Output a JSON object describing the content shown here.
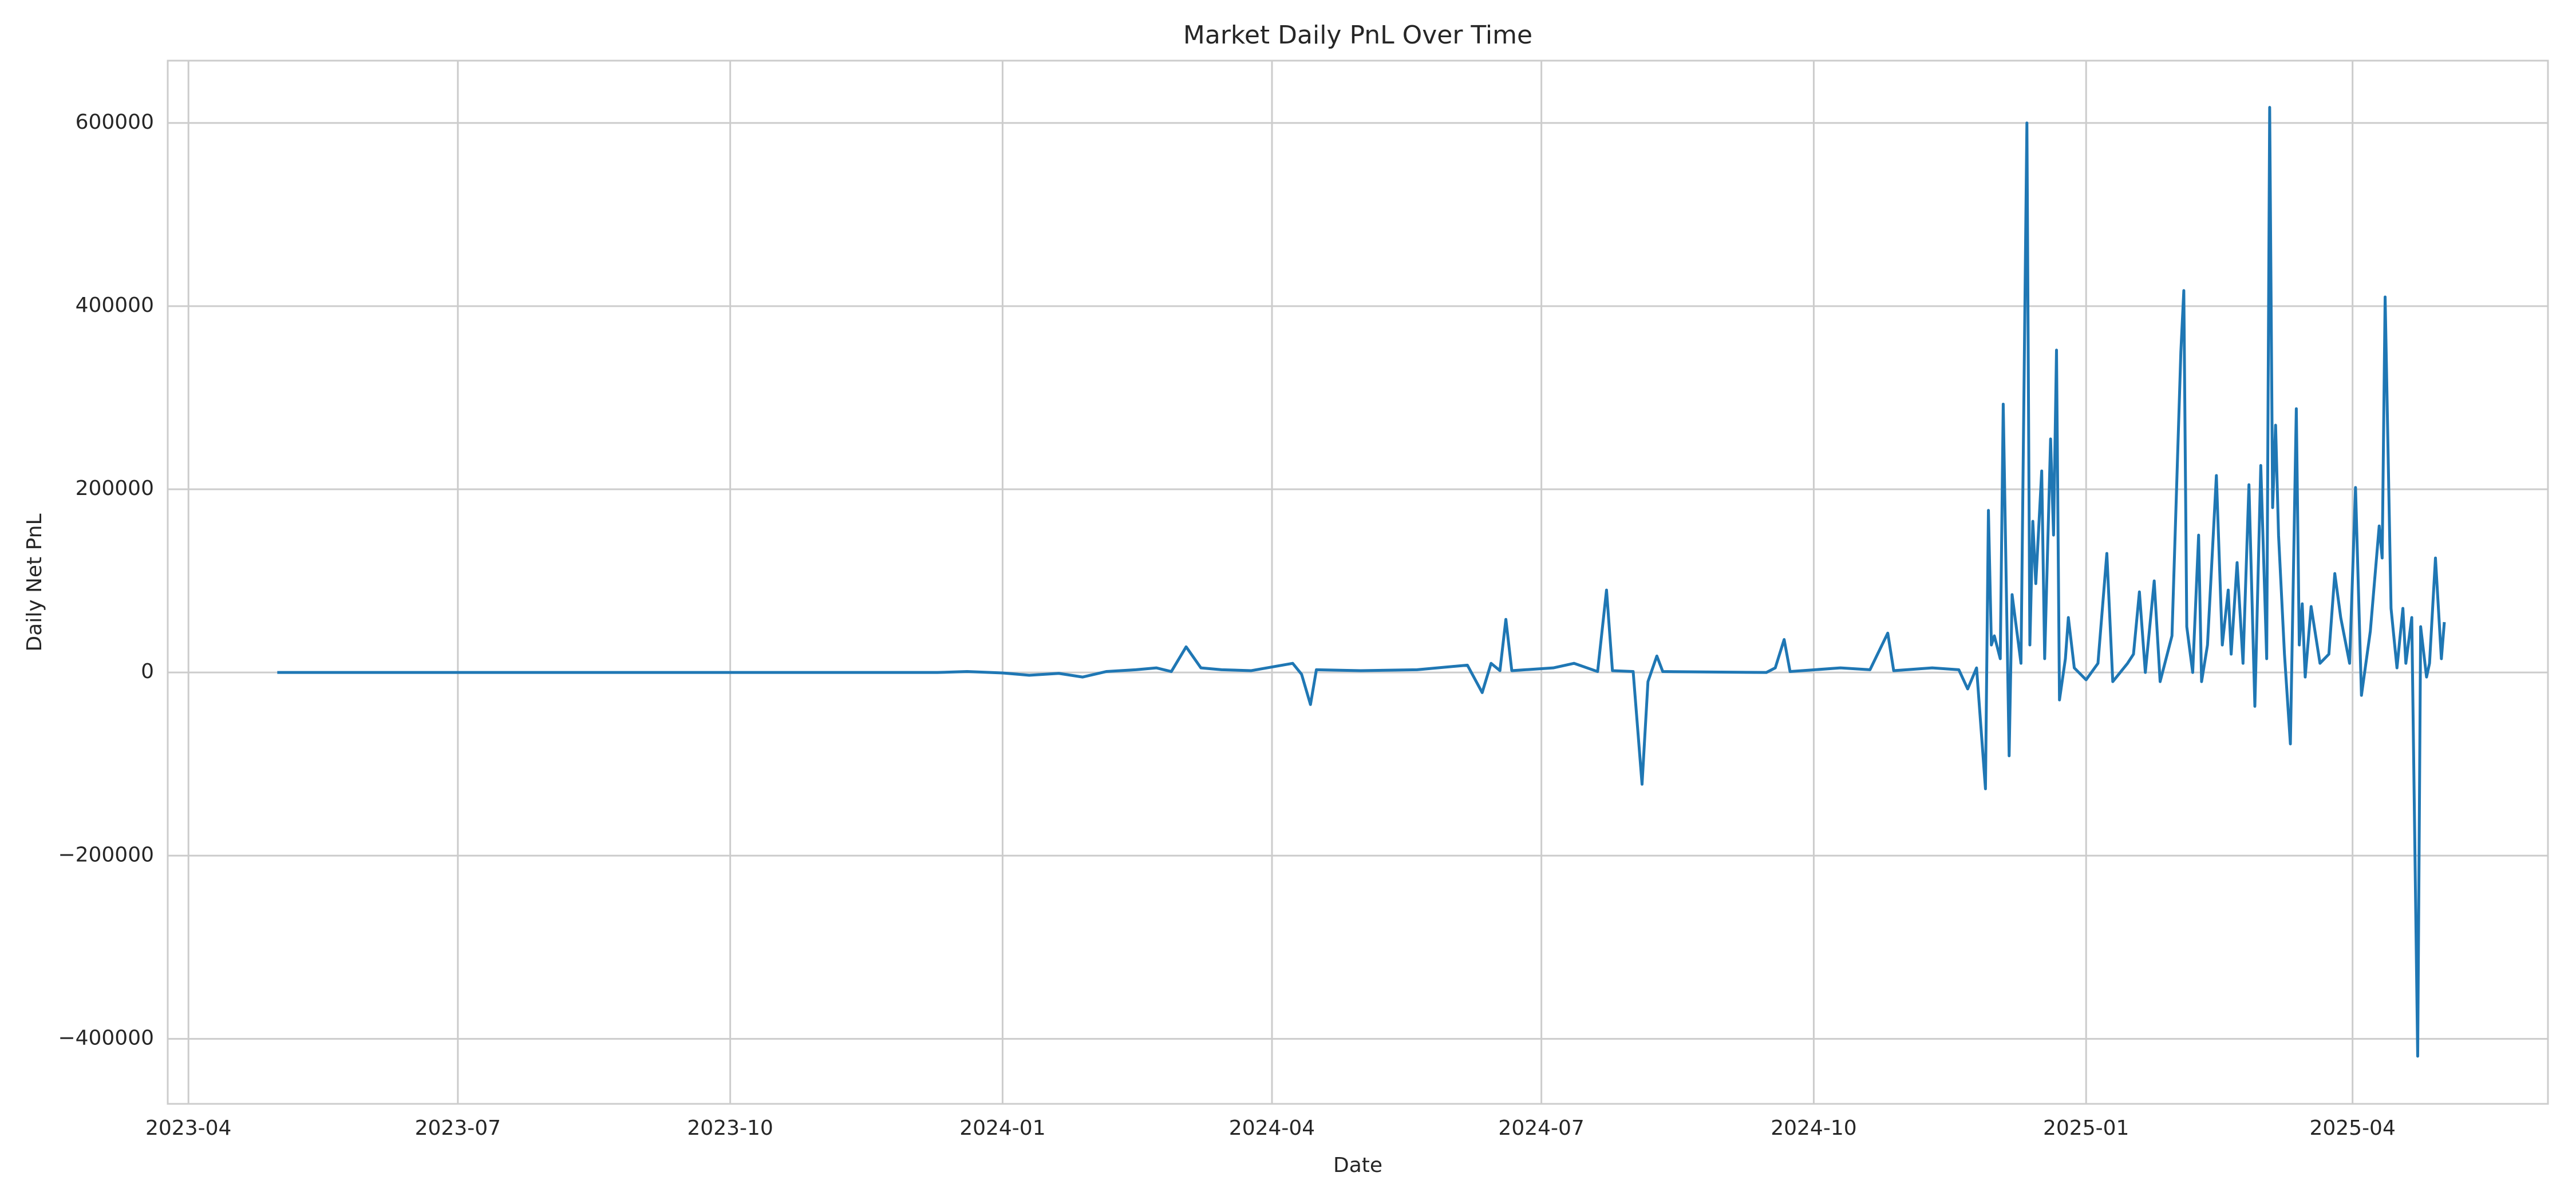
{
  "chart_data": {
    "type": "line",
    "title": "Market Daily PnL Over Time",
    "x_label": "Date",
    "y_label": "Daily Net PnL",
    "grid": true,
    "xlim": [
      "2023-03-25",
      "2025-06-06"
    ],
    "ylim": [
      -471000,
      668000
    ],
    "xticks": [
      {
        "value": "2023-04-01",
        "label": "2023-04"
      },
      {
        "value": "2023-07-01",
        "label": "2023-07"
      },
      {
        "value": "2023-10-01",
        "label": "2023-10"
      },
      {
        "value": "2024-01-01",
        "label": "2024-01"
      },
      {
        "value": "2024-04-01",
        "label": "2024-04"
      },
      {
        "value": "2024-07-01",
        "label": "2024-07"
      },
      {
        "value": "2024-10-01",
        "label": "2024-10"
      },
      {
        "value": "2025-01-01",
        "label": "2025-01"
      },
      {
        "value": "2025-04-01",
        "label": "2025-04"
      }
    ],
    "yticks": [
      {
        "value": -400000,
        "label": "−400000"
      },
      {
        "value": -200000,
        "label": "−200000"
      },
      0,
      200000,
      400000,
      600000
    ],
    "x": [
      "2023-05-01",
      "2023-07-01",
      "2023-09-01",
      "2023-11-01",
      "2023-12-10",
      "2023-12-20",
      "2024-01-01",
      "2024-01-10",
      "2024-01-20",
      "2024-01-28",
      "2024-02-05",
      "2024-02-15",
      "2024-02-22",
      "2024-02-27",
      "2024-03-03",
      "2024-03-08",
      "2024-03-15",
      "2024-03-25",
      "2024-04-08",
      "2024-04-11",
      "2024-04-14",
      "2024-04-16",
      "2024-05-01",
      "2024-05-20",
      "2024-06-06",
      "2024-06-11",
      "2024-06-14",
      "2024-06-17",
      "2024-06-19",
      "2024-06-21",
      "2024-07-05",
      "2024-07-12",
      "2024-07-20",
      "2024-07-23",
      "2024-07-25",
      "2024-08-01",
      "2024-08-04",
      "2024-08-06",
      "2024-08-09",
      "2024-08-11",
      "2024-09-15",
      "2024-09-18",
      "2024-09-21",
      "2024-09-23",
      "2024-10-10",
      "2024-10-20",
      "2024-10-26",
      "2024-10-28",
      "2024-11-10",
      "2024-11-19",
      "2024-11-22",
      "2024-11-25",
      "2024-11-28",
      "2024-11-29",
      "2024-11-30",
      "2024-12-01",
      "2024-12-03",
      "2024-12-04",
      "2024-12-06",
      "2024-12-07",
      "2024-12-10",
      "2024-12-12",
      "2024-12-13",
      "2024-12-14",
      "2024-12-15",
      "2024-12-17",
      "2024-12-18",
      "2024-12-20",
      "2024-12-21",
      "2024-12-22",
      "2024-12-23",
      "2024-12-25",
      "2024-12-26",
      "2024-12-28",
      "2025-01-01",
      "2025-01-05",
      "2025-01-08",
      "2025-01-10",
      "2025-01-15",
      "2025-01-17",
      "2025-01-19",
      "2025-01-21",
      "2025-01-24",
      "2025-01-26",
      "2025-01-30",
      "2025-02-02",
      "2025-02-03",
      "2025-02-04",
      "2025-02-06",
      "2025-02-08",
      "2025-02-09",
      "2025-02-11",
      "2025-02-14",
      "2025-02-16",
      "2025-02-18",
      "2025-02-19",
      "2025-02-21",
      "2025-02-23",
      "2025-02-25",
      "2025-02-27",
      "2025-03-01",
      "2025-03-03",
      "2025-03-04",
      "2025-03-05",
      "2025-03-06",
      "2025-03-07",
      "2025-03-09",
      "2025-03-11",
      "2025-03-13",
      "2025-03-14",
      "2025-03-15",
      "2025-03-16",
      "2025-03-18",
      "2025-03-21",
      "2025-03-24",
      "2025-03-26",
      "2025-03-28",
      "2025-03-31",
      "2025-04-02",
      "2025-04-04",
      "2025-04-07",
      "2025-04-10",
      "2025-04-11",
      "2025-04-12",
      "2025-04-14",
      "2025-04-16",
      "2025-04-18",
      "2025-04-19",
      "2025-04-21",
      "2025-04-23",
      "2025-04-24",
      "2025-04-26",
      "2025-04-27",
      "2025-04-29",
      "2025-05-01",
      "2025-05-02"
    ],
    "series": [
      {
        "name": "Daily Net PnL",
        "color": "#1f77b4",
        "values": [
          0,
          0,
          0,
          0,
          0,
          1000,
          -500,
          -3000,
          -1000,
          -5000,
          1000,
          3000,
          5000,
          1000,
          28000,
          5000,
          3000,
          2000,
          10000,
          -2000,
          -35000,
          3000,
          2000,
          3000,
          8000,
          -22000,
          10000,
          2000,
          58000,
          2000,
          5000,
          10000,
          1000,
          90000,
          2000,
          1000,
          -122000,
          -10000,
          18000,
          1000,
          0,
          5000,
          36000,
          1000,
          5000,
          3000,
          43000,
          2000,
          5000,
          3000,
          -18000,
          5000,
          -127000,
          177000,
          30000,
          40000,
          15000,
          293000,
          -91000,
          85000,
          10000,
          600000,
          30000,
          165000,
          97000,
          220000,
          15000,
          255000,
          150000,
          352000,
          -30000,
          15000,
          60000,
          5000,
          -8000,
          10000,
          130000,
          -10000,
          10000,
          20000,
          88000,
          0,
          100000,
          -10000,
          40000,
          350000,
          417000,
          50000,
          0,
          150000,
          -10000,
          30000,
          215000,
          30000,
          90000,
          20000,
          120000,
          10000,
          205000,
          -37000,
          226000,
          15000,
          617000,
          180000,
          270000,
          150000,
          20000,
          -78000,
          288000,
          30000,
          75000,
          -5000,
          72000,
          10000,
          20000,
          108000,
          60000,
          10000,
          202000,
          -25000,
          45000,
          160000,
          125000,
          410000,
          70000,
          5000,
          70000,
          10000,
          60000,
          -419000,
          50000,
          -5000,
          10000,
          125000,
          15000,
          55000
        ]
      }
    ]
  }
}
